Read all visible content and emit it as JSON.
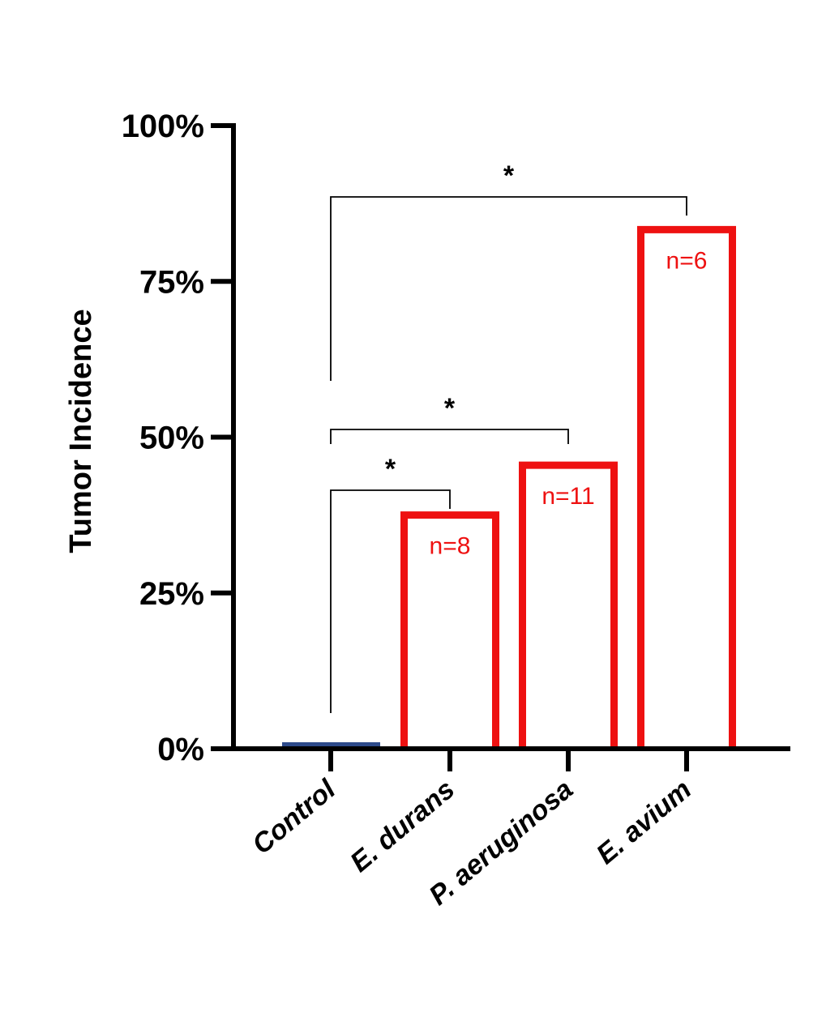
{
  "chart_data": {
    "type": "bar",
    "title": "",
    "xlabel": "",
    "ylabel": "Tumor Incidence",
    "ylim": [
      0,
      100
    ],
    "yticks": [
      0,
      25,
      50,
      75,
      100
    ],
    "ytick_labels": [
      "0%",
      "25%",
      "50%",
      "75%",
      "100%"
    ],
    "categories": [
      "Control",
      "E. durans",
      "P. aeruginosa",
      "E. avium"
    ],
    "values": [
      0,
      37.5,
      45.5,
      83.3
    ],
    "bar_labels": [
      "",
      "n=8",
      "n=11",
      "n=6"
    ],
    "bar_colors": [
      "#2d4a8a",
      "#ee1111",
      "#ee1111",
      "#ee1111"
    ],
    "significance": [
      {
        "from": "Control",
        "to": "E. durans",
        "label": "*"
      },
      {
        "from": "Control",
        "to": "P. aeruginosa",
        "label": "*"
      },
      {
        "from": "Control",
        "to": "E. avium",
        "label": "*"
      }
    ]
  }
}
